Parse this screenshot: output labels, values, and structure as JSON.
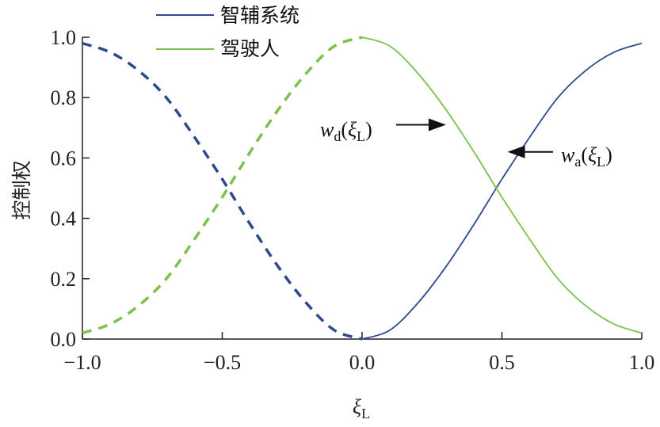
{
  "chart_data": {
    "type": "line",
    "xlabel": "ξL",
    "ylabel": "控制权",
    "xlim": [
      -1.0,
      1.0
    ],
    "ylim": [
      0.0,
      1.0
    ],
    "xticks": [
      -1.0,
      -0.5,
      0.0,
      0.5,
      1.0
    ],
    "xtick_labels": [
      "−1.0",
      "−0.5",
      "0.0",
      "0.5",
      "1.0"
    ],
    "yticks": [
      0.0,
      0.2,
      0.4,
      0.6,
      0.8,
      1.0
    ],
    "ytick_labels": [
      "0.0",
      "0.2",
      "0.4",
      "0.6",
      "0.8",
      "1.0"
    ],
    "grid": false,
    "legend_position": "top-center",
    "series": [
      {
        "name": "智辅系统",
        "color": "#2e4a8c",
        "x": [
          -1.0,
          -0.9,
          -0.8,
          -0.7,
          -0.6,
          -0.5,
          -0.4,
          -0.3,
          -0.2,
          -0.1,
          0.0,
          0.1,
          0.2,
          0.3,
          0.4,
          0.5,
          0.6,
          0.7,
          0.8,
          0.9,
          1.0
        ],
        "y": [
          0.98,
          0.95,
          0.89,
          0.8,
          0.67,
          0.53,
          0.38,
          0.24,
          0.12,
          0.03,
          0.0,
          0.03,
          0.12,
          0.24,
          0.38,
          0.53,
          0.67,
          0.8,
          0.89,
          0.95,
          0.98
        ],
        "style": [
          "dashed",
          "dashed",
          "dashed",
          "dashed",
          "dashed",
          "dashed",
          "dashed",
          "dashed",
          "dashed",
          "dashed",
          "solid",
          "solid",
          "solid",
          "solid",
          "solid",
          "solid",
          "solid",
          "solid",
          "solid",
          "solid",
          "solid"
        ]
      },
      {
        "name": "驾驶人",
        "color": "#7cc24a",
        "x": [
          -1.0,
          -0.9,
          -0.8,
          -0.7,
          -0.6,
          -0.5,
          -0.4,
          -0.3,
          -0.2,
          -0.1,
          0.0,
          0.1,
          0.2,
          0.3,
          0.4,
          0.5,
          0.6,
          0.7,
          0.8,
          0.9,
          1.0
        ],
        "y": [
          0.02,
          0.05,
          0.11,
          0.2,
          0.33,
          0.47,
          0.62,
          0.76,
          0.88,
          0.97,
          1.0,
          0.97,
          0.88,
          0.76,
          0.62,
          0.47,
          0.33,
          0.2,
          0.11,
          0.05,
          0.02
        ],
        "style": [
          "dashed",
          "dashed",
          "dashed",
          "dashed",
          "dashed",
          "dashed",
          "dashed",
          "dashed",
          "dashed",
          "dashed",
          "solid",
          "solid",
          "solid",
          "solid",
          "solid",
          "solid",
          "solid",
          "solid",
          "solid",
          "solid",
          "solid"
        ]
      }
    ],
    "annotations": [
      {
        "text_base": "w",
        "text_sub": "d",
        "text_arg": "ξ",
        "text_arg_sub": "L",
        "target_x": 0.3,
        "target_y": 0.71,
        "arrow": "right"
      },
      {
        "text_base": "w",
        "text_sub": "a",
        "text_arg": "ξ",
        "text_arg_sub": "L",
        "target_x": 0.52,
        "target_y": 0.62,
        "arrow": "left"
      }
    ]
  }
}
